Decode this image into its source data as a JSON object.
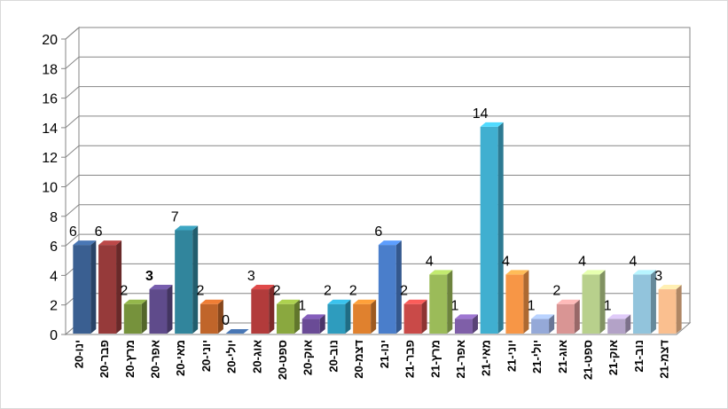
{
  "chart_data": {
    "type": "bar",
    "title": "",
    "xlabel": "",
    "ylabel": "",
    "ylim": [
      0,
      20
    ],
    "yticks": [
      0,
      2,
      4,
      6,
      8,
      10,
      12,
      14,
      16,
      18,
      20
    ],
    "grid": true,
    "legend": "none",
    "categories": [
      "ינו-20",
      "פבר-20",
      "מרץ-20",
      "אפר-20",
      "מאי-20",
      "יוני-20",
      "יולי-20",
      "אוג-20",
      "ספט-20",
      "אוק-20",
      "נוב-20",
      "דצמ-20",
      "ינו-21",
      "פבר-21",
      "מרץ-21",
      "אפר-21",
      "מאי-21",
      "יוני-21",
      "יולי-21",
      "אוג-21",
      "ספט-21",
      "אוק-21",
      "נוב-21",
      "דצמ-21"
    ],
    "values": [
      6,
      6,
      2,
      3,
      7,
      2,
      0,
      3,
      2,
      1,
      2,
      2,
      6,
      2,
      4,
      1,
      14,
      4,
      1,
      2,
      4,
      1,
      4,
      3
    ],
    "bold_labels": [
      3
    ],
    "colors": [
      "#3a5f91",
      "#963a3a",
      "#76923c",
      "#5f4b8b",
      "#31859c",
      "#c0652a",
      "#3a5f91",
      "#b23b3b",
      "#8aa83f",
      "#6a4b96",
      "#2e9cbe",
      "#e0812e",
      "#4a7ecb",
      "#c94a48",
      "#9bbb59",
      "#7f5fa8",
      "#40afd0",
      "#f79646",
      "#95a9d8",
      "#d99594",
      "#b8d08c",
      "#b3a2c7",
      "#92c4dc",
      "#fabf8f"
    ]
  }
}
